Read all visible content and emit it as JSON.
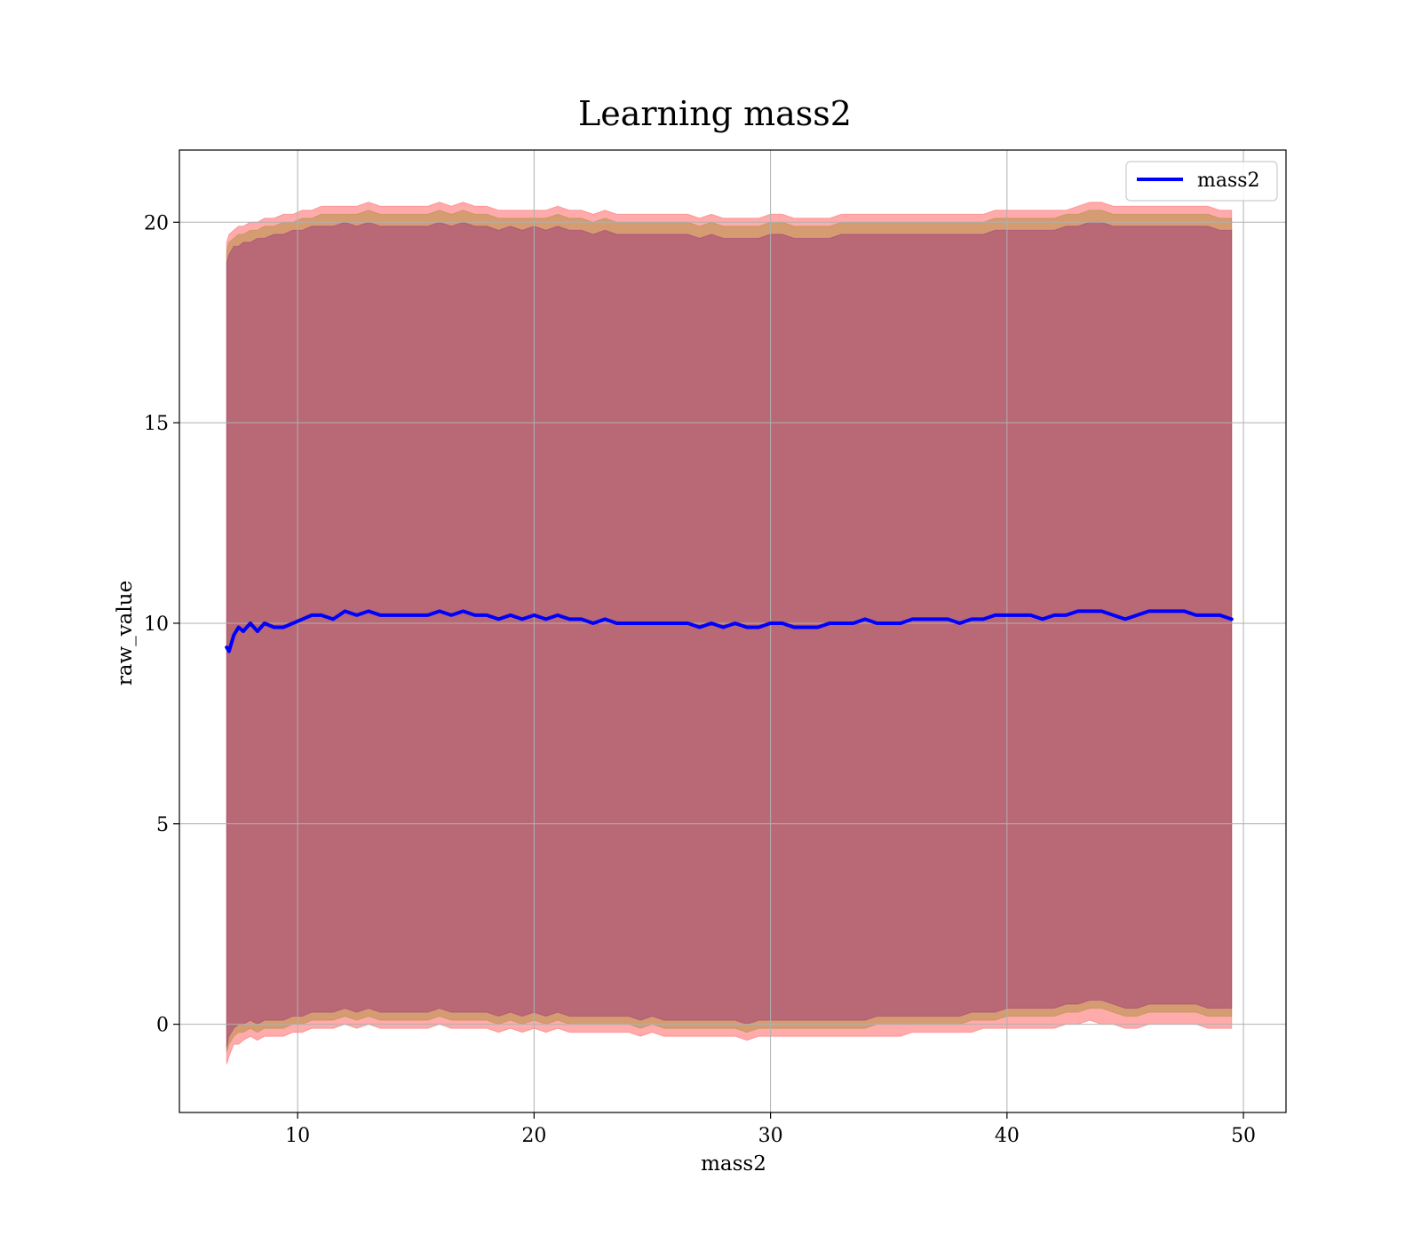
{
  "chart_data": {
    "type": "line",
    "title": "Learning mass2",
    "xlabel": "mass2",
    "ylabel": "raw_value",
    "xlim": [
      5,
      51.8
    ],
    "ylim": [
      -2.2,
      21.8
    ],
    "x_ticks": [
      10,
      20,
      30,
      40,
      50
    ],
    "y_ticks": [
      0,
      5,
      10,
      15,
      20
    ],
    "x_tick_labels": [
      "10",
      "20",
      "30",
      "40",
      "50"
    ],
    "y_tick_labels": [
      "0",
      "5",
      "10",
      "15",
      "20"
    ],
    "grid": true,
    "legend": {
      "position": "top-right",
      "entries": [
        "mass2"
      ]
    },
    "series": [
      {
        "name": "mass2",
        "color": "#0000ff",
        "x": [
          7.0,
          7.1,
          7.3,
          7.5,
          7.7,
          8.0,
          8.3,
          8.6,
          9.0,
          9.4,
          9.8,
          10.2,
          10.6,
          11.0,
          11.5,
          12.0,
          12.5,
          13.0,
          13.5,
          14.0,
          14.5,
          15.0,
          15.5,
          16.0,
          16.5,
          17.0,
          17.5,
          18.0,
          18.5,
          19.0,
          19.5,
          20.0,
          20.5,
          21.0,
          21.5,
          22.0,
          22.5,
          23.0,
          23.5,
          24.0,
          24.5,
          25.0,
          25.5,
          26.0,
          26.5,
          27.0,
          27.5,
          28.0,
          28.5,
          29.0,
          29.5,
          30.0,
          30.5,
          31.0,
          31.5,
          32.0,
          32.5,
          33.0,
          33.5,
          34.0,
          34.5,
          35.0,
          35.5,
          36.0,
          36.5,
          37.0,
          37.5,
          38.0,
          38.5,
          39.0,
          39.5,
          40.0,
          40.5,
          41.0,
          41.5,
          42.0,
          42.5,
          43.0,
          43.5,
          44.0,
          44.5,
          45.0,
          45.5,
          46.0,
          46.5,
          47.0,
          47.5,
          48.0,
          48.5,
          49.0,
          49.5
        ],
        "values": [
          9.4,
          9.3,
          9.7,
          9.9,
          9.8,
          10.0,
          9.8,
          10.0,
          9.9,
          9.9,
          10.0,
          10.1,
          10.2,
          10.2,
          10.1,
          10.3,
          10.2,
          10.3,
          10.2,
          10.2,
          10.2,
          10.2,
          10.2,
          10.3,
          10.2,
          10.3,
          10.2,
          10.2,
          10.1,
          10.2,
          10.1,
          10.2,
          10.1,
          10.2,
          10.1,
          10.1,
          10.0,
          10.1,
          10.0,
          10.0,
          10.0,
          10.0,
          10.0,
          10.0,
          10.0,
          9.9,
          10.0,
          9.9,
          10.0,
          9.9,
          9.9,
          10.0,
          10.0,
          9.9,
          9.9,
          9.9,
          10.0,
          10.0,
          10.0,
          10.1,
          10.0,
          10.0,
          10.0,
          10.1,
          10.1,
          10.1,
          10.1,
          10.0,
          10.1,
          10.1,
          10.2,
          10.2,
          10.2,
          10.2,
          10.1,
          10.2,
          10.2,
          10.3,
          10.3,
          10.3,
          10.2,
          10.1,
          10.2,
          10.3,
          10.3,
          10.3,
          10.3,
          10.2,
          10.2,
          10.2,
          10.1
        ]
      }
    ],
    "bands": [
      {
        "color": "#ff0000",
        "opacity": 0.33,
        "lower": [
          -1.0,
          -0.8,
          -0.5,
          -0.5,
          -0.4,
          -0.3,
          -0.4,
          -0.3,
          -0.3,
          -0.3,
          -0.2,
          -0.2,
          -0.1,
          -0.1,
          -0.1,
          0.0,
          -0.1,
          0.0,
          -0.1,
          -0.1,
          -0.1,
          -0.1,
          -0.1,
          0.0,
          -0.1,
          -0.1,
          -0.1,
          -0.1,
          -0.2,
          -0.1,
          -0.2,
          -0.1,
          -0.2,
          -0.1,
          -0.2,
          -0.2,
          -0.2,
          -0.2,
          -0.2,
          -0.2,
          -0.3,
          -0.2,
          -0.3,
          -0.3,
          -0.3,
          -0.3,
          -0.3,
          -0.3,
          -0.3,
          -0.4,
          -0.3,
          -0.3,
          -0.3,
          -0.3,
          -0.3,
          -0.3,
          -0.3,
          -0.3,
          -0.3,
          -0.3,
          -0.3,
          -0.3,
          -0.3,
          -0.2,
          -0.2,
          -0.2,
          -0.2,
          -0.2,
          -0.2,
          -0.1,
          -0.1,
          -0.1,
          -0.1,
          -0.1,
          -0.1,
          -0.1,
          0.0,
          0.0,
          0.1,
          0.0,
          0.0,
          -0.1,
          -0.1,
          0.0,
          0.0,
          0.0,
          0.0,
          0.0,
          -0.1,
          -0.1,
          -0.1
        ],
        "upper": [
          19.5,
          19.7,
          19.8,
          19.9,
          19.9,
          20.0,
          20.0,
          20.1,
          20.1,
          20.2,
          20.2,
          20.3,
          20.3,
          20.4,
          20.4,
          20.4,
          20.4,
          20.5,
          20.4,
          20.4,
          20.4,
          20.4,
          20.4,
          20.5,
          20.4,
          20.5,
          20.4,
          20.4,
          20.3,
          20.3,
          20.3,
          20.3,
          20.3,
          20.4,
          20.3,
          20.3,
          20.2,
          20.3,
          20.2,
          20.2,
          20.2,
          20.2,
          20.2,
          20.2,
          20.2,
          20.1,
          20.2,
          20.1,
          20.1,
          20.1,
          20.1,
          20.2,
          20.2,
          20.1,
          20.1,
          20.1,
          20.1,
          20.2,
          20.2,
          20.2,
          20.2,
          20.2,
          20.2,
          20.2,
          20.2,
          20.2,
          20.2,
          20.2,
          20.2,
          20.2,
          20.3,
          20.3,
          20.3,
          20.3,
          20.3,
          20.3,
          20.3,
          20.4,
          20.5,
          20.5,
          20.4,
          20.4,
          20.4,
          20.4,
          20.4,
          20.4,
          20.4,
          20.4,
          20.4,
          20.3,
          20.3
        ]
      },
      {
        "color": "#808000",
        "opacity": 0.33,
        "lower": [
          -0.7,
          -0.5,
          -0.3,
          -0.2,
          -0.2,
          -0.1,
          -0.2,
          -0.1,
          -0.1,
          -0.1,
          0.0,
          0.0,
          0.1,
          0.1,
          0.1,
          0.2,
          0.1,
          0.2,
          0.1,
          0.1,
          0.1,
          0.1,
          0.1,
          0.2,
          0.1,
          0.1,
          0.1,
          0.1,
          0.0,
          0.1,
          0.0,
          0.1,
          0.0,
          0.1,
          0.0,
          0.0,
          0.0,
          0.0,
          0.0,
          0.0,
          -0.1,
          0.0,
          -0.1,
          -0.1,
          -0.1,
          -0.1,
          -0.1,
          -0.1,
          -0.1,
          -0.2,
          -0.1,
          -0.1,
          -0.1,
          -0.1,
          -0.1,
          -0.1,
          -0.1,
          -0.1,
          -0.1,
          -0.1,
          0.0,
          0.0,
          0.0,
          0.0,
          0.0,
          0.0,
          0.0,
          0.0,
          0.1,
          0.1,
          0.1,
          0.2,
          0.2,
          0.2,
          0.2,
          0.2,
          0.3,
          0.3,
          0.4,
          0.4,
          0.3,
          0.2,
          0.2,
          0.3,
          0.3,
          0.3,
          0.3,
          0.3,
          0.2,
          0.2,
          0.2
        ],
        "upper": [
          19.3,
          19.5,
          19.6,
          19.7,
          19.7,
          19.8,
          19.8,
          19.9,
          19.9,
          20.0,
          20.0,
          20.1,
          20.1,
          20.2,
          20.2,
          20.2,
          20.2,
          20.3,
          20.2,
          20.2,
          20.2,
          20.2,
          20.2,
          20.3,
          20.2,
          20.3,
          20.2,
          20.2,
          20.1,
          20.1,
          20.1,
          20.1,
          20.1,
          20.2,
          20.1,
          20.1,
          20.0,
          20.1,
          20.0,
          20.0,
          20.0,
          20.0,
          20.0,
          20.0,
          20.0,
          19.9,
          20.0,
          19.9,
          19.9,
          19.9,
          19.9,
          20.0,
          20.0,
          19.9,
          19.9,
          19.9,
          19.9,
          20.0,
          20.0,
          20.0,
          20.0,
          20.0,
          20.0,
          20.0,
          20.0,
          20.0,
          20.0,
          20.0,
          20.0,
          20.0,
          20.1,
          20.1,
          20.1,
          20.1,
          20.1,
          20.1,
          20.2,
          20.2,
          20.3,
          20.3,
          20.2,
          20.2,
          20.2,
          20.2,
          20.2,
          20.2,
          20.2,
          20.2,
          20.2,
          20.1,
          20.1
        ]
      },
      {
        "color": "#800080",
        "opacity": 0.33,
        "lower": [
          -0.6,
          -0.3,
          -0.1,
          0.0,
          0.0,
          0.1,
          0.0,
          0.1,
          0.1,
          0.1,
          0.2,
          0.2,
          0.3,
          0.3,
          0.3,
          0.4,
          0.3,
          0.4,
          0.3,
          0.3,
          0.3,
          0.3,
          0.3,
          0.4,
          0.3,
          0.3,
          0.3,
          0.3,
          0.2,
          0.3,
          0.2,
          0.3,
          0.2,
          0.3,
          0.2,
          0.2,
          0.2,
          0.2,
          0.2,
          0.2,
          0.1,
          0.2,
          0.1,
          0.1,
          0.1,
          0.1,
          0.1,
          0.1,
          0.1,
          0.0,
          0.1,
          0.1,
          0.1,
          0.1,
          0.1,
          0.1,
          0.1,
          0.1,
          0.1,
          0.1,
          0.2,
          0.2,
          0.2,
          0.2,
          0.2,
          0.2,
          0.2,
          0.2,
          0.3,
          0.3,
          0.3,
          0.4,
          0.4,
          0.4,
          0.4,
          0.4,
          0.5,
          0.5,
          0.6,
          0.6,
          0.5,
          0.4,
          0.4,
          0.5,
          0.5,
          0.5,
          0.5,
          0.5,
          0.4,
          0.4,
          0.4
        ],
        "upper": [
          19.0,
          19.2,
          19.4,
          19.4,
          19.5,
          19.5,
          19.6,
          19.6,
          19.7,
          19.7,
          19.8,
          19.8,
          19.9,
          19.9,
          19.9,
          20.0,
          19.9,
          20.0,
          19.9,
          19.9,
          19.9,
          19.9,
          19.9,
          20.0,
          19.9,
          20.0,
          19.9,
          19.9,
          19.8,
          19.9,
          19.8,
          19.9,
          19.8,
          19.9,
          19.8,
          19.8,
          19.7,
          19.8,
          19.7,
          19.7,
          19.7,
          19.7,
          19.7,
          19.7,
          19.7,
          19.6,
          19.7,
          19.6,
          19.6,
          19.6,
          19.6,
          19.7,
          19.7,
          19.6,
          19.6,
          19.6,
          19.6,
          19.7,
          19.7,
          19.7,
          19.7,
          19.7,
          19.7,
          19.7,
          19.7,
          19.7,
          19.7,
          19.7,
          19.7,
          19.7,
          19.8,
          19.8,
          19.8,
          19.8,
          19.8,
          19.8,
          19.9,
          19.9,
          20.0,
          20.0,
          19.9,
          19.9,
          19.9,
          19.9,
          19.9,
          19.9,
          19.9,
          19.9,
          19.9,
          19.8,
          19.8
        ]
      }
    ]
  }
}
